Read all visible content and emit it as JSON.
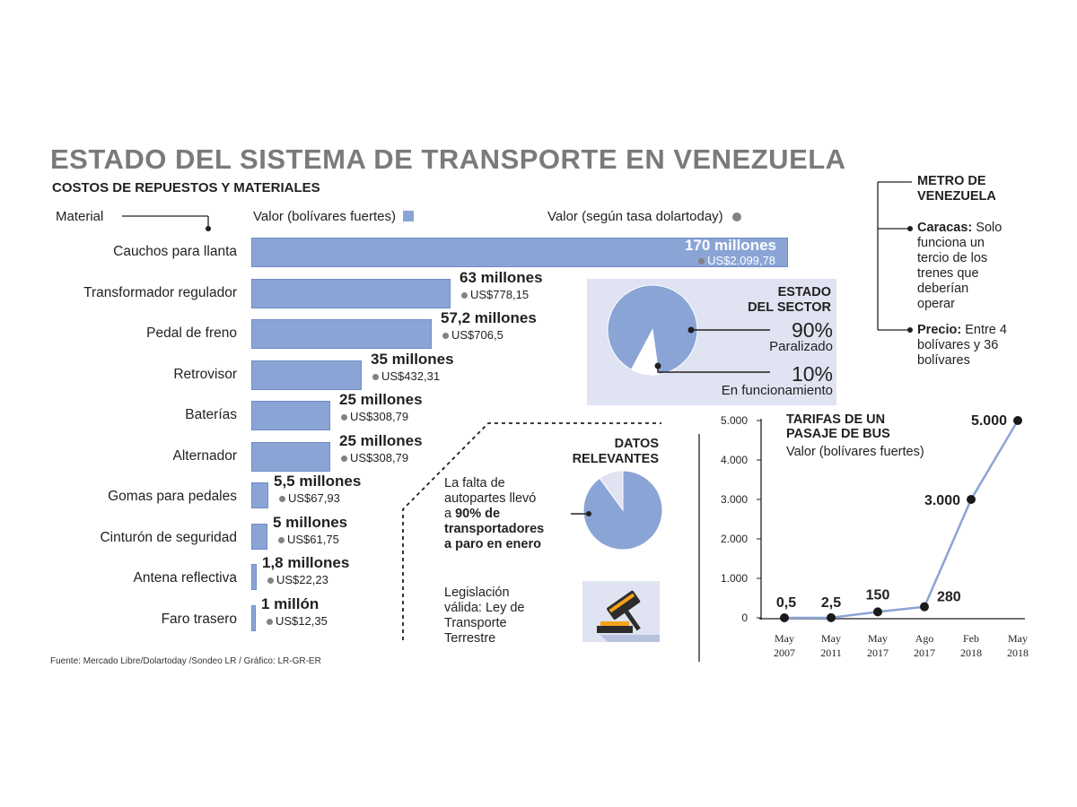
{
  "title": "ESTADO DEL SISTEMA DE TRANSPORTE EN VENEZUELA",
  "subtitle": "COSTOS DE REPUESTOS Y MATERIALES",
  "headers": {
    "material": "Material",
    "valor_bs": "Valor (bolívares fuertes)",
    "valor_usd": "Valor (según tasa dolartoday)"
  },
  "colors": {
    "bar": "#8aa4d6",
    "bar_stroke": "#6f8cc6",
    "panel": "#dfe3f2",
    "dot": "#808285",
    "line": "#8aa4d6"
  },
  "chart_data": [
    {
      "type": "bar",
      "title": "COSTOS DE REPUESTOS Y MATERIALES",
      "categories": [
        "Cauchos para llanta",
        "Transformador regulador",
        "Pedal de freno",
        "Retrovisor",
        "Baterías",
        "Alternador",
        "Gomas para pedales",
        "Cinturón de seguridad",
        "Antena reflectiva",
        "Faro trasero"
      ],
      "series": [
        {
          "name": "Valor (bolívares fuertes)",
          "values": [
            170000000,
            63000000,
            57200000,
            35000000,
            25000000,
            25000000,
            5500000,
            5000000,
            1800000,
            1000000
          ]
        },
        {
          "name": "Valor (según tasa dolartoday)",
          "values": [
            2099.78,
            778.15,
            706.5,
            432.31,
            308.79,
            308.79,
            67.93,
            61.75,
            22.23,
            12.35
          ]
        }
      ],
      "value_labels": [
        "170 millones",
        "63 millones",
        "57,2 millones",
        "35 millones",
        "25 millones",
        "25 millones",
        "5,5 millones",
        "5 millones",
        "1,8 millones",
        "1 millón"
      ],
      "usd_labels": [
        "US$2.099,78",
        "US$778,15",
        "US$706,5",
        "US$432,31",
        "US$308,79",
        "US$308,79",
        "US$67,93",
        "US$61,75",
        "US$22,23",
        "US$12,35"
      ]
    },
    {
      "type": "pie",
      "title": "ESTADO DEL SECTOR",
      "slices": [
        {
          "label": "Paralizado",
          "value": 90,
          "text": "90%"
        },
        {
          "label": "En funcionamiento",
          "value": 10,
          "text": "10%"
        }
      ]
    },
    {
      "type": "line",
      "title": "TARIFAS DE UN PASAJE DE BUS",
      "subtitle": "Valor (bolívares fuertes)",
      "x": [
        "May 2007",
        "May 2011",
        "May 2017",
        "Ago 2017",
        "Feb 2018",
        "May 2018"
      ],
      "x_lines": [
        [
          "May",
          "2007"
        ],
        [
          "May",
          "2011"
        ],
        [
          "May",
          "2017"
        ],
        [
          "Ago",
          "2017"
        ],
        [
          "Feb",
          "2018"
        ],
        [
          "May",
          "2018"
        ]
      ],
      "values": [
        0.5,
        2.5,
        150,
        280,
        3000,
        5000
      ],
      "value_labels": [
        "0,5",
        "2,5",
        "150",
        "280",
        "3.000",
        "5.000"
      ],
      "ylim": [
        0,
        5000
      ],
      "yticks": [
        "0",
        "1.000",
        "2.000",
        "3.000",
        "4.000",
        "5.000"
      ]
    }
  ],
  "estado": {
    "heading_1": "ESTADO",
    "heading_2": "DEL SECTOR",
    "pct_1": "90%",
    "label_1": "Paralizado",
    "pct_2": "10%",
    "label_2": "En funcionamiento"
  },
  "datos": {
    "heading_1": "DATOS",
    "heading_2": "RELEVANTES",
    "fact1_line1": "La falta de",
    "fact1_line2": "autopartes llevó",
    "fact1_line3_a": "a ",
    "fact1_line3_b": "90% de",
    "fact1_line4": "transportadores",
    "fact1_line5": "a paro en enero",
    "fact2_line1": "Legislación",
    "fact2_line2": "válida: Ley de",
    "fact2_line3": "Transporte",
    "fact2_line4": "Terrestre",
    "pie_values": [
      90,
      10
    ]
  },
  "metro": {
    "heading_1": "METRO DE",
    "heading_2": "VENEZUELA",
    "caracas_label": "Caracas:",
    "caracas_l1": "Solo",
    "caracas_l2": "funciona un",
    "caracas_l3": "tercio de los",
    "caracas_l4": "trenes que",
    "caracas_l5": "deberían",
    "caracas_l6": "operar",
    "precio_label": "Precio:",
    "precio_l1": "Entre 4",
    "precio_l2": "bolívares y 36",
    "precio_l3": "bolívares"
  },
  "line_heading_1": "TARIFAS DE UN",
  "line_heading_2": "PASAJE DE BUS",
  "line_sub": "Valor (bolívares fuertes)",
  "footer": "Fuente: Mercado Libre/Dolartoday /Sondeo LR / Gráfico: LR-GR-ER"
}
